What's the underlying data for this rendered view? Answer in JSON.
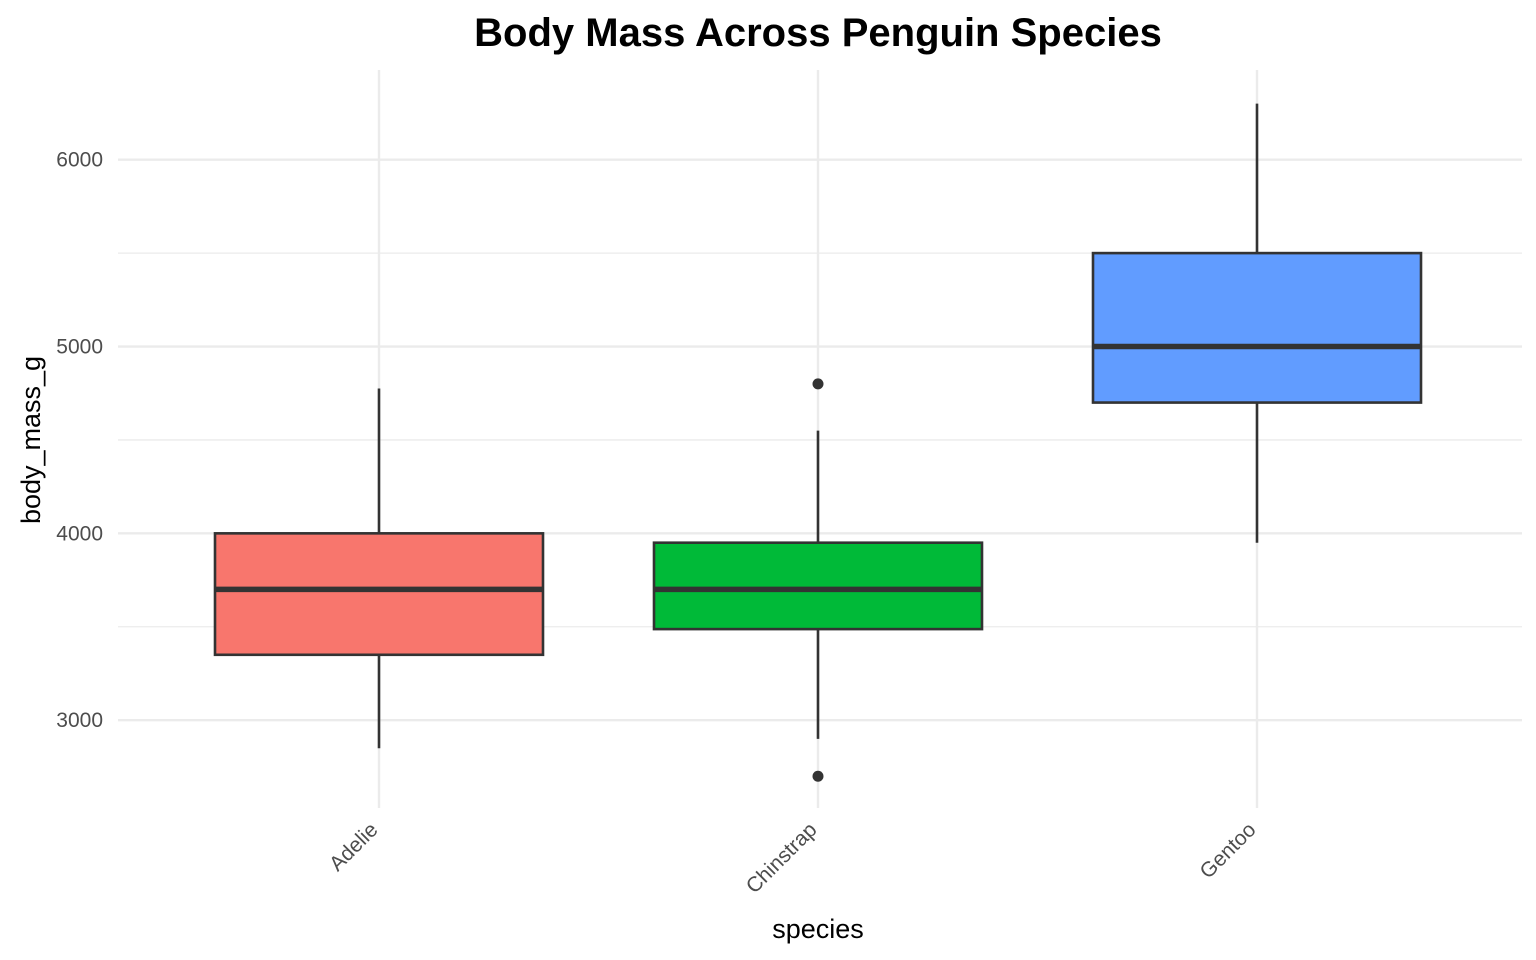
{
  "chart_data": {
    "type": "boxplot",
    "title": "Body Mass Across Penguin Species",
    "xlabel": "species",
    "ylabel": "body_mass_g",
    "ylim": [
      2530,
      6480
    ],
    "y_ticks": [
      3000,
      4000,
      5000,
      6000
    ],
    "y_minor_ticks": [
      3500,
      4500,
      5500
    ],
    "grid": true,
    "legend": "none",
    "categories": [
      "Adelie",
      "Chinstrap",
      "Gentoo"
    ],
    "boxes": [
      {
        "category": "Adelie",
        "color": "#F8766D",
        "whisker_low": 2850,
        "q1": 3350,
        "median": 3700,
        "q3": 4000,
        "whisker_high": 4775,
        "outliers": []
      },
      {
        "category": "Chinstrap",
        "color": "#00BA38",
        "whisker_low": 2900,
        "q1": 3487.5,
        "median": 3700,
        "q3": 3950,
        "whisker_high": 4550,
        "outliers": [
          2700,
          4800
        ]
      },
      {
        "category": "Gentoo",
        "color": "#619CFF",
        "whisker_low": 3950,
        "q1": 4700,
        "median": 5000,
        "q3": 5500,
        "whisker_high": 6300,
        "outliers": []
      }
    ]
  }
}
